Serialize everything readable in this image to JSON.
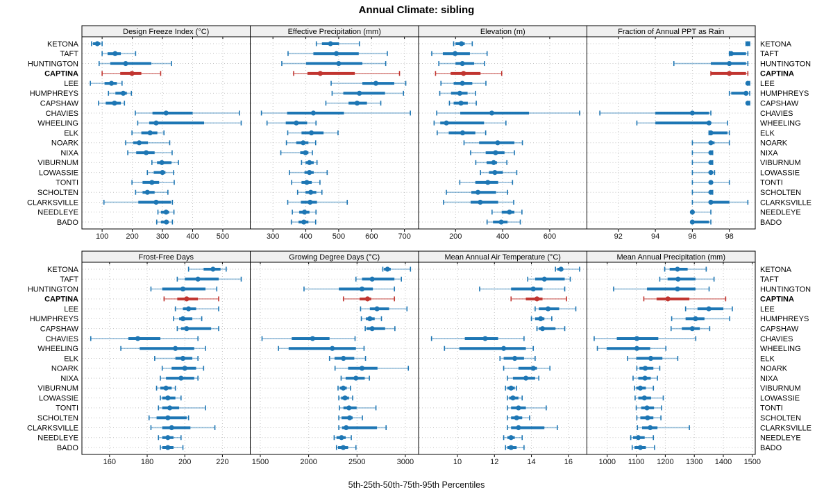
{
  "page": {
    "title": "Annual Climate: sibling",
    "caption": "5th-25th-50th-75th-95th Percentiles"
  },
  "colors": {
    "series": "#1d76b4",
    "series_light": "rgba(29,118,180,0.45)",
    "highlight": "#c13530",
    "highlight_light": "rgba(193,53,48,0.55)",
    "strip_bg": "#f0f0f0",
    "grid": "#c4c4c4",
    "border": "#000000"
  },
  "highlight_station": "CAPTINA",
  "stations": [
    "KETONA",
    "TAFT",
    "HUNTINGTON",
    "CAPTINA",
    "LEE",
    "HUMPHREYS",
    "CAPSHAW",
    "CHAVIES",
    "WHEELING",
    "ELK",
    "NOARK",
    "NIXA",
    "VIBURNUM",
    "LOWASSIE",
    "TONTI",
    "SCHOLTEN",
    "CLARKSVILLE",
    "NEEDLEYE",
    "BADO"
  ],
  "percentiles": [
    "5th",
    "25th",
    "50th",
    "75th",
    "95th"
  ],
  "chart_data": [
    {
      "type": "percentile-interval",
      "title": "Design Freeze Index (°C)",
      "xlim": [
        33,
        591
      ],
      "ticks": [
        100,
        200,
        300,
        400,
        500
      ],
      "values": {
        "KETONA": [
          65,
          70,
          84,
          94,
          100
        ],
        "TAFT": [
          100,
          118,
          143,
          162,
          211
        ],
        "HUNTINGTON": [
          90,
          127,
          178,
          263,
          330
        ],
        "CAPTINA": [
          100,
          160,
          199,
          230,
          294
        ],
        "LEE": [
          61,
          108,
          131,
          149,
          166
        ],
        "HUMPHREYS": [
          121,
          144,
          170,
          182,
          197
        ],
        "CAPSHAW": [
          88,
          112,
          141,
          162,
          174
        ],
        "CHAVIES": [
          210,
          267,
          312,
          400,
          555
        ],
        "WHEELING": [
          218,
          256,
          279,
          438,
          561
        ],
        "ELK": [
          199,
          230,
          259,
          283,
          305
        ],
        "NOARK": [
          178,
          203,
          223,
          252,
          324
        ],
        "NIXA": [
          185,
          213,
          246,
          274,
          332
        ],
        "VIBURNUM": [
          265,
          282,
          298,
          330,
          353
        ],
        "LOWASSIE": [
          250,
          271,
          300,
          310,
          337
        ],
        "TONTI": [
          199,
          234,
          265,
          289,
          339
        ],
        "SCHOLTEN": [
          211,
          234,
          250,
          274,
          318
        ],
        "CLARKSVILLE": [
          106,
          220,
          279,
          328,
          333
        ],
        "NEEDLEYE": [
          285,
          295,
          312,
          322,
          338
        ],
        "BADO": [
          281,
          295,
          313,
          320,
          333
        ]
      }
    },
    {
      "type": "percentile-interval",
      "title": "Effective Precipitation (mm)",
      "xlim": [
        231,
        743
      ],
      "ticks": [
        300,
        400,
        500,
        600,
        700
      ],
      "values": {
        "KETONA": [
          432,
          449,
          475,
          501,
          563
        ],
        "TAFT": [
          346,
          423,
          493,
          561,
          648
        ],
        "HUNTINGTON": [
          327,
          401,
          500,
          572,
          643
        ],
        "CAPTINA": [
          363,
          405,
          444,
          549,
          685
        ],
        "LEE": [
          477,
          572,
          613,
          669,
          704
        ],
        "HUMPHREYS": [
          480,
          514,
          563,
          641,
          697
        ],
        "CAPSHAW": [
          461,
          530,
          556,
          586,
          628
        ],
        "CHAVIES": [
          265,
          343,
          423,
          516,
          718
        ],
        "WHEELING": [
          282,
          339,
          371,
          404,
          431
        ],
        "ELK": [
          345,
          387,
          417,
          454,
          498
        ],
        "NOARK": [
          341,
          371,
          392,
          408,
          430
        ],
        "NIXA": [
          324,
          383,
          399,
          408,
          420
        ],
        "VIBURNUM": [
          387,
          399,
          411,
          424,
          434
        ],
        "LOWASSIE": [
          350,
          396,
          411,
          424,
          465
        ],
        "TONTI": [
          357,
          387,
          403,
          418,
          443
        ],
        "SCHOLTEN": [
          375,
          399,
          415,
          432,
          449
        ],
        "CLARKSVILLE": [
          345,
          385,
          413,
          434,
          526
        ],
        "NEEDLEYE": [
          359,
          380,
          396,
          411,
          431
        ],
        "BADO": [
          356,
          378,
          394,
          408,
          430
        ]
      }
    },
    {
      "type": "percentile-interval",
      "title": "Elevation (m)",
      "xlim": [
        43,
        758
      ],
      "ticks": [
        200,
        400,
        600
      ],
      "values": {
        "KETONA": [
          192,
          200,
          225,
          239,
          271
        ],
        "TAFT": [
          99,
          146,
          198,
          261,
          334
        ],
        "HUNTINGTON": [
          129,
          200,
          229,
          279,
          323
        ],
        "CAPTINA": [
          115,
          179,
          234,
          306,
          396
        ],
        "LEE": [
          138,
          192,
          229,
          271,
          329
        ],
        "HUMPHREYS": [
          133,
          181,
          218,
          251,
          285
        ],
        "CAPSHAW": [
          174,
          192,
          223,
          252,
          288
        ],
        "CHAVIES": [
          120,
          220,
          354,
          512,
          727
        ],
        "WHEELING": [
          109,
          135,
          161,
          321,
          414
        ],
        "ELK": [
          122,
          171,
          230,
          284,
          328
        ],
        "NOARK": [
          236,
          300,
          379,
          450,
          484
        ],
        "NIXA": [
          264,
          328,
          370,
          408,
          450
        ],
        "VIBURNUM": [
          286,
          332,
          362,
          376,
          418
        ],
        "LOWASSIE": [
          306,
          342,
          367,
          401,
          460
        ],
        "TONTI": [
          218,
          284,
          337,
          381,
          442
        ],
        "SCHOLTEN": [
          161,
          267,
          295,
          372,
          421
        ],
        "CLARKSVILLE": [
          149,
          264,
          305,
          381,
          447
        ],
        "NEEDLEYE": [
          355,
          396,
          429,
          450,
          482
        ],
        "BADO": [
          334,
          359,
          394,
          421,
          475
        ]
      }
    },
    {
      "type": "percentile-interval",
      "title": "Fraction of Annual PPT as Rain",
      "xlim": [
        90.3,
        99.4
      ],
      "ticks": [
        92,
        94,
        96,
        98
      ],
      "values": {
        "KETONA": [
          98.9,
          99,
          99,
          99,
          99.1
        ],
        "TAFT": [
          98,
          98,
          98.1,
          98.9,
          99
        ],
        "HUNTINGTON": [
          95,
          97,
          98,
          98.9,
          99
        ],
        "CAPTINA": [
          97,
          97,
          98,
          98.9,
          99
        ],
        "LEE": [
          99,
          99,
          99,
          99,
          99.1
        ],
        "HUMPHREYS": [
          98,
          98.1,
          98.9,
          99,
          99.1
        ],
        "CAPSHAW": [
          99,
          99,
          99,
          99,
          99.1
        ],
        "CHAVIES": [
          91,
          94,
          96,
          96.9,
          97
        ],
        "WHEELING": [
          93,
          94,
          96.9,
          97,
          97.9
        ],
        "ELK": [
          96.9,
          97,
          97,
          97.9,
          98
        ],
        "NOARK": [
          96,
          97,
          97,
          97.2,
          98
        ],
        "NIXA": [
          96,
          96.9,
          97,
          97,
          97.1
        ],
        "VIBURNUM": [
          96,
          96.9,
          97,
          97,
          97.1
        ],
        "LOWASSIE": [
          96,
          96.9,
          97,
          97,
          97.2
        ],
        "TONTI": [
          96,
          97,
          97,
          97.1,
          98
        ],
        "SCHOLTEN": [
          96,
          96.9,
          97,
          97,
          97.1
        ],
        "CLARKSVILLE": [
          96,
          97,
          97,
          98,
          99
        ],
        "NEEDLEYE": [
          96,
          96,
          96,
          96.1,
          97
        ],
        "BADO": [
          96,
          96,
          96,
          96.9,
          97
        ]
      }
    },
    {
      "type": "percentile-interval",
      "title": "Frost-Free Days",
      "xlim": [
        145.3,
        234.8
      ],
      "ticks": [
        160,
        180,
        200,
        220
      ],
      "values": {
        "KETONA": [
          202,
          210,
          215,
          219,
          222
        ],
        "TAFT": [
          196,
          200,
          207,
          218,
          230
        ],
        "HUNTINGTON": [
          182,
          188,
          199,
          211,
          217
        ],
        "CAPTINA": [
          189,
          196,
          201,
          207,
          218
        ],
        "LEE": [
          195,
          199,
          202,
          206,
          218
        ],
        "HUMPHREYS": [
          194,
          197,
          199,
          204,
          209
        ],
        "CAPSHAW": [
          196,
          198,
          201,
          214,
          218
        ],
        "CHAVIES": [
          150,
          170,
          175,
          187,
          207
        ],
        "WHEELING": [
          166,
          176,
          195,
          205,
          211
        ],
        "ELK": [
          184,
          195,
          199,
          204,
          207
        ],
        "NOARK": [
          188,
          193,
          200,
          206,
          210
        ],
        "NIXA": [
          187,
          190,
          198,
          205,
          207
        ],
        "VIBURNUM": [
          185,
          187,
          190,
          193,
          195
        ],
        "LOWASSIE": [
          187,
          188,
          191,
          195,
          198
        ],
        "TONTI": [
          186,
          188,
          192,
          197,
          211
        ],
        "SCHOLTEN": [
          181,
          185,
          191,
          201,
          202
        ],
        "CLARKSVILLE": [
          182,
          188,
          193,
          203,
          216
        ],
        "NEEDLEYE": [
          186,
          188,
          191,
          194,
          198
        ],
        "BADO": [
          187,
          188,
          191,
          194,
          199
        ]
      }
    },
    {
      "type": "percentile-interval",
      "title": "Growing Degree Days (°C)",
      "xlim": [
        1396,
        3137
      ],
      "ticks": [
        1500,
        2000,
        2500,
        3000
      ],
      "values": {
        "KETONA": [
          2767,
          2779,
          2815,
          2849,
          3053
        ],
        "TAFT": [
          2489,
          2552,
          2657,
          2887,
          2959
        ],
        "HUNTINGTON": [
          1952,
          2312,
          2552,
          2664,
          2887
        ],
        "CAPTINA": [
          2360,
          2527,
          2609,
          2647,
          2887
        ],
        "LEE": [
          2537,
          2633,
          2707,
          2832,
          3017
        ],
        "HUMPHREYS": [
          2545,
          2592,
          2633,
          2683,
          2753
        ],
        "CAPSHAW": [
          2585,
          2599,
          2657,
          2791,
          2892
        ],
        "CHAVIES": [
          1518,
          1825,
          2041,
          2216,
          2480
        ],
        "WHEELING": [
          1688,
          1793,
          2245,
          2489,
          2573
        ],
        "ELK": [
          2216,
          2268,
          2360,
          2472,
          2588
        ],
        "NOARK": [
          2273,
          2408,
          2552,
          2712,
          3031
        ],
        "NIXA": [
          2336,
          2383,
          2489,
          2580,
          2628
        ],
        "VIBURNUM": [
          2304,
          2322,
          2358,
          2394,
          2432
        ],
        "LOWASSIE": [
          2312,
          2336,
          2376,
          2417,
          2455
        ],
        "TONTI": [
          2317,
          2360,
          2417,
          2496,
          2696
        ],
        "SCHOLTEN": [
          2312,
          2340,
          2424,
          2455,
          2556
        ],
        "CLARKSVILLE": [
          2312,
          2345,
          2388,
          2707,
          2801
        ],
        "NEEDLEYE": [
          2264,
          2288,
          2340,
          2383,
          2441
        ],
        "BADO": [
          2288,
          2304,
          2358,
          2408,
          2489
        ]
      }
    },
    {
      "type": "percentile-interval",
      "title": "Mean Annual Air Temperature (°C)",
      "xlim": [
        7.9,
        17.0
      ],
      "ticks": [
        10,
        12,
        14,
        16
      ],
      "values": {
        "KETONA": [
          15.3,
          15.4,
          15.6,
          15.7,
          16.6
        ],
        "TAFT": [
          13.8,
          14.2,
          14.7,
          15.8,
          16.1
        ],
        "HUNTINGTON": [
          11.2,
          12.9,
          14.1,
          14.6,
          15.8
        ],
        "CAPTINA": [
          12.9,
          13.7,
          14.3,
          14.6,
          15.9
        ],
        "LEE": [
          14.2,
          14.4,
          14.9,
          15.5,
          16.4
        ],
        "HUMPHREYS": [
          14.0,
          14.2,
          14.5,
          14.7,
          15.1
        ],
        "CAPSHAW": [
          14.3,
          14.4,
          14.6,
          15.3,
          15.8
        ],
        "CHAVIES": [
          8.6,
          10.4,
          11.5,
          12.2,
          13.6
        ],
        "WHEELING": [
          9.3,
          10.1,
          12.5,
          13.7,
          14.1
        ],
        "ELK": [
          12.3,
          12.5,
          13.1,
          13.6,
          14.2
        ],
        "NOARK": [
          12.5,
          13.3,
          14.1,
          14.3,
          15.0
        ],
        "NIXA": [
          12.7,
          13.0,
          13.7,
          14.2,
          14.4
        ],
        "VIBURNUM": [
          12.6,
          12.7,
          12.9,
          13.1,
          13.2
        ],
        "LOWASSIE": [
          12.7,
          12.8,
          13.0,
          13.3,
          13.5
        ],
        "TONTI": [
          12.7,
          12.9,
          13.3,
          13.7,
          14.8
        ],
        "SCHOLTEN": [
          12.7,
          12.9,
          13.2,
          13.5,
          13.9
        ],
        "CLARKSVILLE": [
          12.7,
          12.9,
          13.3,
          14.7,
          15.4
        ],
        "NEEDLEYE": [
          12.5,
          12.7,
          12.9,
          13.1,
          13.5
        ],
        "BADO": [
          12.6,
          12.7,
          12.9,
          13.2,
          13.6
        ]
      }
    },
    {
      "type": "percentile-interval",
      "title": "Mean Annual Precipitation (mm)",
      "xlim": [
        930,
        1510
      ],
      "ticks": [
        1000,
        1100,
        1200,
        1300,
        1400,
        1500
      ],
      "values": {
        "KETONA": [
          1198,
          1215,
          1242,
          1277,
          1341
        ],
        "TAFT": [
          1181,
          1208,
          1244,
          1304,
          1368
        ],
        "HUNTINGTON": [
          1022,
          1137,
          1242,
          1304,
          1351
        ],
        "CAPTINA": [
          1126,
          1170,
          1209,
          1283,
          1408
        ],
        "LEE": [
          1270,
          1311,
          1350,
          1400,
          1431
        ],
        "HUMPHREYS": [
          1222,
          1270,
          1304,
          1335,
          1422
        ],
        "CAPSHAW": [
          1220,
          1257,
          1293,
          1319,
          1353
        ],
        "CHAVIES": [
          955,
          1033,
          1102,
          1176,
          1305
        ],
        "WHEELING": [
          966,
          998,
          1102,
          1148,
          1202
        ],
        "ELK": [
          1070,
          1100,
          1150,
          1190,
          1243
        ],
        "NOARK": [
          1102,
          1111,
          1131,
          1159,
          1181
        ],
        "NIXA": [
          1089,
          1107,
          1130,
          1150,
          1173
        ],
        "VIBURNUM": [
          1094,
          1100,
          1114,
          1133,
          1159
        ],
        "LOWASSIE": [
          1096,
          1107,
          1128,
          1151,
          1193
        ],
        "TONTI": [
          1100,
          1117,
          1137,
          1161,
          1187
        ],
        "SCHOLTEN": [
          1102,
          1114,
          1139,
          1159,
          1185
        ],
        "CLARKSVILLE": [
          1104,
          1120,
          1148,
          1173,
          1283
        ],
        "NEEDLEYE": [
          1081,
          1089,
          1107,
          1129,
          1159
        ],
        "BADO": [
          1086,
          1094,
          1114,
          1133,
          1163
        ]
      }
    }
  ]
}
